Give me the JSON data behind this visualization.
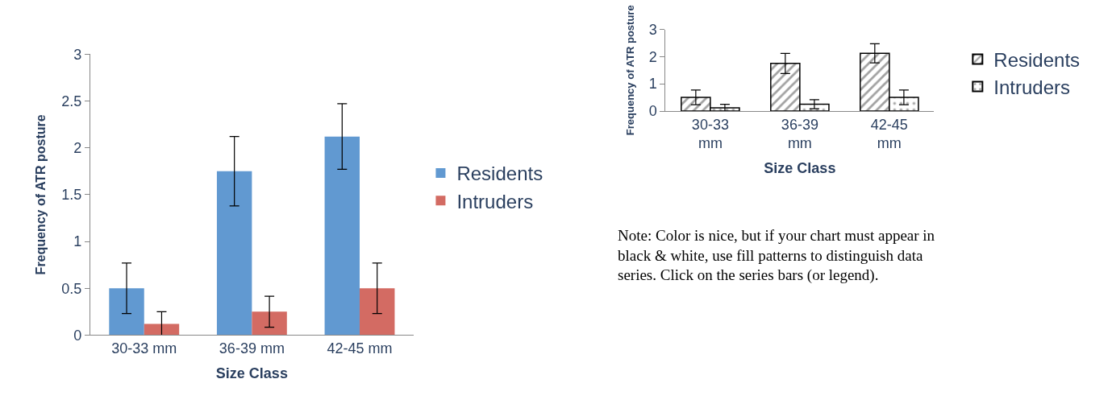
{
  "chart_data": [
    {
      "type": "bar",
      "xlabel": "Size Class",
      "ylabel": "Frequency of ATR posture",
      "categories": [
        "30-33 mm",
        "36-39 mm",
        "42-45 mm"
      ],
      "series": [
        {
          "name": "Residents",
          "color": "#6199d1",
          "values": [
            0.5,
            1.75,
            2.12
          ],
          "errors": [
            0.27,
            0.37,
            0.35
          ]
        },
        {
          "name": "Intruders",
          "color": "#d36b63",
          "values": [
            0.12,
            0.25,
            0.5
          ],
          "errors": [
            0.13,
            0.165,
            0.27
          ]
        }
      ],
      "ylim": [
        0,
        3
      ],
      "yticks": [
        0,
        0.5,
        1,
        1.5,
        2,
        2.5,
        3
      ],
      "legend": "right"
    },
    {
      "type": "bar",
      "xlabel": "Size Class",
      "ylabel": "Frequency of ATR posture",
      "categories": [
        "30-33 mm",
        "36-39 mm",
        "42-45 mm"
      ],
      "series": [
        {
          "name": "Residents",
          "color": "#000000",
          "values": [
            0.5,
            1.75,
            2.12
          ],
          "errors": [
            0.27,
            0.37,
            0.35
          ]
        },
        {
          "name": "Intruders",
          "color": "#000000",
          "values": [
            0.12,
            0.25,
            0.5
          ],
          "errors": [
            0.13,
            0.165,
            0.27
          ]
        }
      ],
      "ylim": [
        0,
        3
      ],
      "yticks": [
        0,
        1,
        2,
        3
      ],
      "legend": "right",
      "annotations": [
        "Note: Color is nice, but if your chart must appear in black & white, use fill patterns to distinguish data series. Click on the series bars (or legend)."
      ]
    }
  ]
}
